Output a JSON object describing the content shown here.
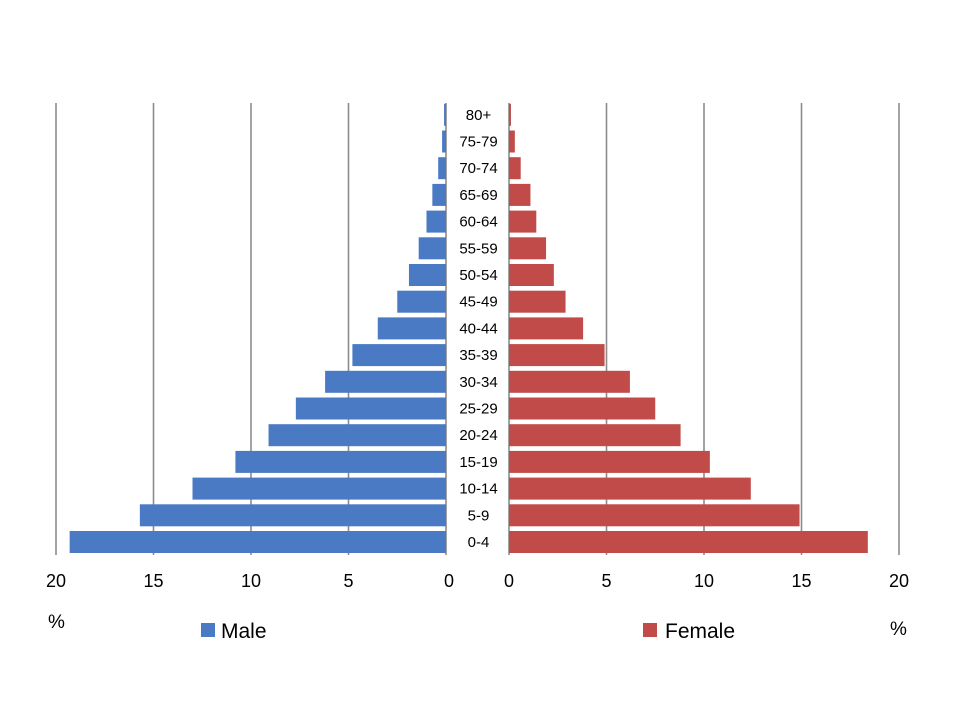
{
  "chart_data": {
    "type": "bar",
    "orientation": "horizontal",
    "layout": "population-pyramid",
    "categories": [
      "0-4",
      "5-9",
      "10-14",
      "15-19",
      "20-24",
      "25-29",
      "30-34",
      "35-39",
      "40-44",
      "45-49",
      "50-54",
      "55-59",
      "60-64",
      "65-69",
      "70-74",
      "75-79",
      "80+"
    ],
    "series": [
      {
        "name": "Male",
        "color": "#4a7ac4",
        "side": "left",
        "values": [
          19.3,
          15.7,
          13.0,
          10.8,
          9.1,
          7.7,
          6.2,
          4.8,
          3.5,
          2.5,
          1.9,
          1.4,
          1.0,
          0.7,
          0.4,
          0.2,
          0.1
        ]
      },
      {
        "name": "Female",
        "color": "#c04b48",
        "side": "right",
        "values": [
          18.4,
          14.9,
          12.4,
          10.3,
          8.8,
          7.5,
          6.2,
          4.9,
          3.8,
          2.9,
          2.3,
          1.9,
          1.4,
          1.1,
          0.6,
          0.3,
          0.1
        ]
      }
    ],
    "xlim": [
      0,
      20
    ],
    "x_ticks": [
      "20",
      "15",
      "10",
      "5",
      "0"
    ],
    "x_ticks_right": [
      "0",
      "5",
      "10",
      "15",
      "20"
    ],
    "x_unit_label": "%",
    "grid": "vertical",
    "legend": "bottom"
  }
}
